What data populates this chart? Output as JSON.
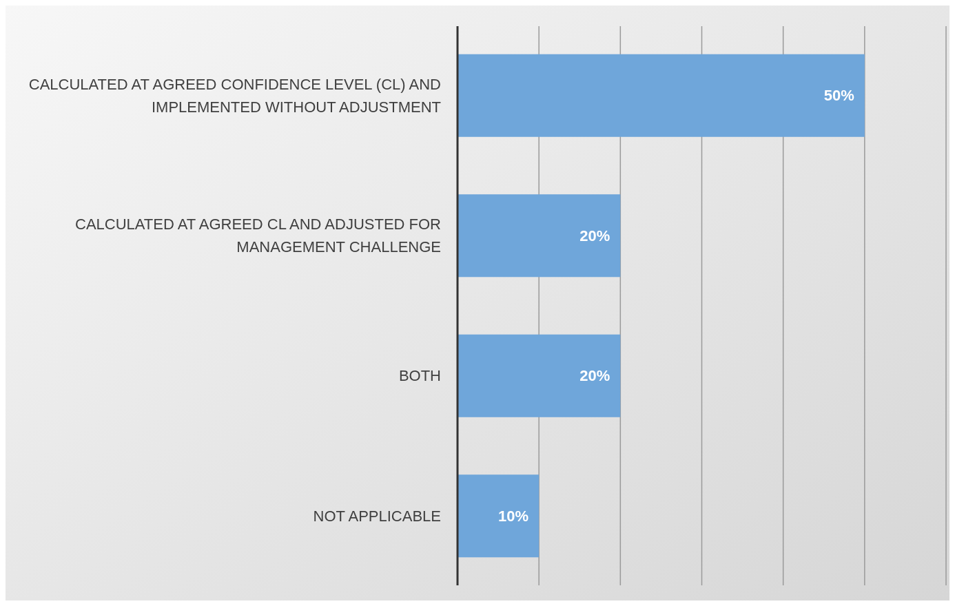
{
  "chart_data": {
    "type": "bar",
    "orientation": "horizontal",
    "categories": [
      "CALCULATED AT AGREED CONFIDENCE LEVEL (CL) AND IMPLEMENTED WITHOUT ADJUSTMENT",
      "CALCULATED AT AGREED CL AND ADJUSTED FOR MANAGEMENT CHALLENGE",
      "BOTH",
      "NOT APPLICABLE"
    ],
    "values": [
      50,
      20,
      20,
      10
    ],
    "value_labels": [
      "50%",
      "20%",
      "20%",
      "10%"
    ],
    "color": "#6fa6da",
    "xlim": [
      0,
      60
    ],
    "xticks": [
      0,
      10,
      20,
      30,
      40,
      50,
      60
    ],
    "tick_labels": "y",
    "grid": "x"
  }
}
